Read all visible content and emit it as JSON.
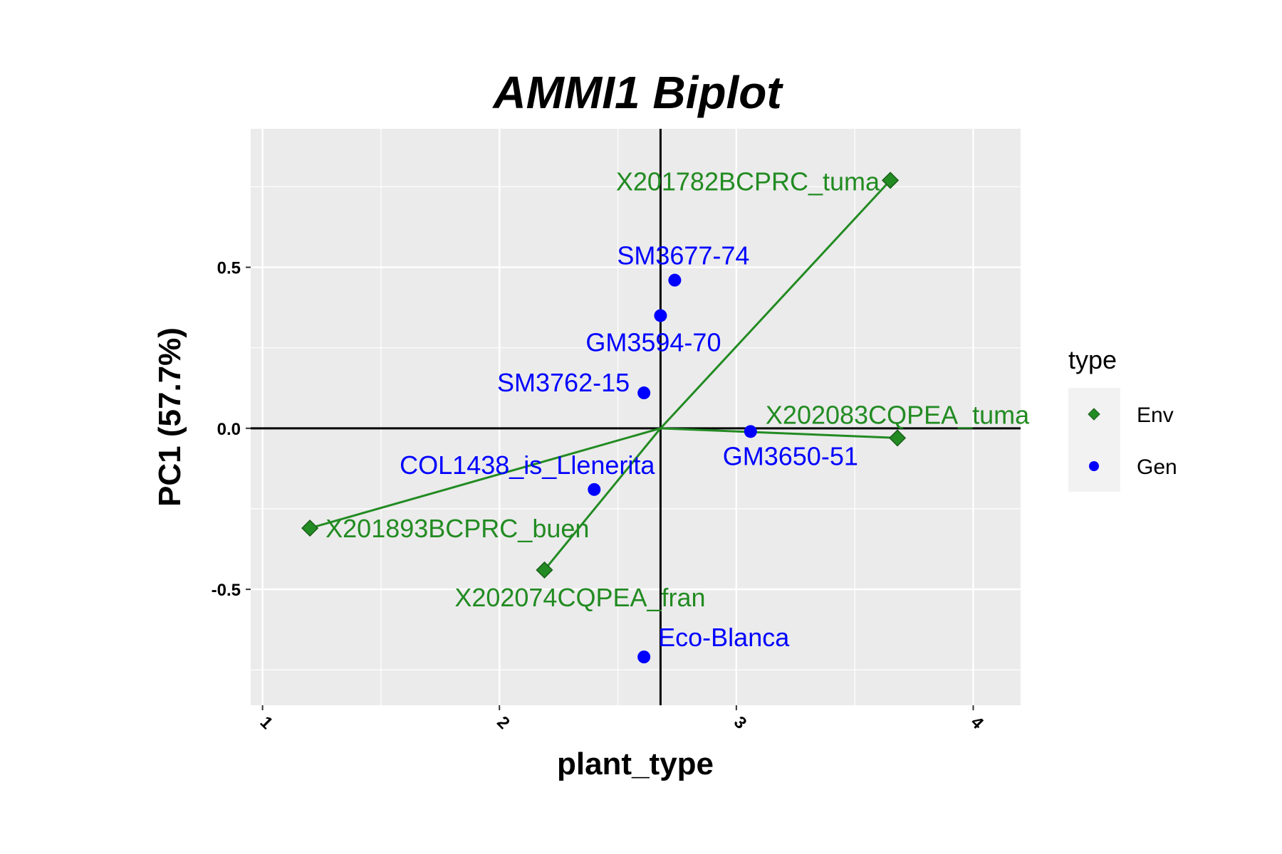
{
  "chart_data": {
    "type": "scatter",
    "title": "AMMI1 Biplot",
    "xlabel": "plant_type",
    "ylabel": "PC1 (57.7%)",
    "xlim": [
      0.95,
      4.2
    ],
    "ylim": [
      -0.86,
      0.93
    ],
    "x_ticks": [
      1,
      2,
      3,
      4
    ],
    "y_ticks": [
      -0.5,
      0.0,
      0.5
    ],
    "y_tick_labels": [
      "-0.5",
      "0.0",
      "0.5"
    ],
    "grid": true,
    "origin": [
      2.68,
      0.0
    ],
    "legend": {
      "title": "type",
      "placement": "right",
      "entries": [
        {
          "label": "Env",
          "color": "#228B22",
          "marker": "diamond"
        },
        {
          "label": "Gen",
          "color": "#0000FF",
          "marker": "circle"
        }
      ]
    },
    "series": [
      {
        "name": "Env",
        "color": "#228B22",
        "marker": "diamond",
        "points": [
          {
            "label": "X201782BCPRC_tuma",
            "x": 3.65,
            "y": 0.77
          },
          {
            "label": "X202083CQPEA_tuma",
            "x": 3.68,
            "y": -0.03
          },
          {
            "label": "X201893BCPRC_buen",
            "x": 1.2,
            "y": -0.31
          },
          {
            "label": "X202074CQPEA_fran",
            "x": 2.19,
            "y": -0.44
          }
        ]
      },
      {
        "name": "Gen",
        "color": "#0000FF",
        "marker": "circle",
        "points": [
          {
            "label": "SM3677-74",
            "x": 2.74,
            "y": 0.46
          },
          {
            "label": "GM3594-70",
            "x": 2.68,
            "y": 0.35
          },
          {
            "label": "SM3762-15",
            "x": 2.61,
            "y": 0.11
          },
          {
            "label": "GM3650-51",
            "x": 3.06,
            "y": -0.01
          },
          {
            "label": "COL1438_is_Llenerita",
            "x": 2.4,
            "y": -0.19
          },
          {
            "label": "Eco-Blanca",
            "x": 2.61,
            "y": -0.71
          }
        ]
      }
    ]
  }
}
